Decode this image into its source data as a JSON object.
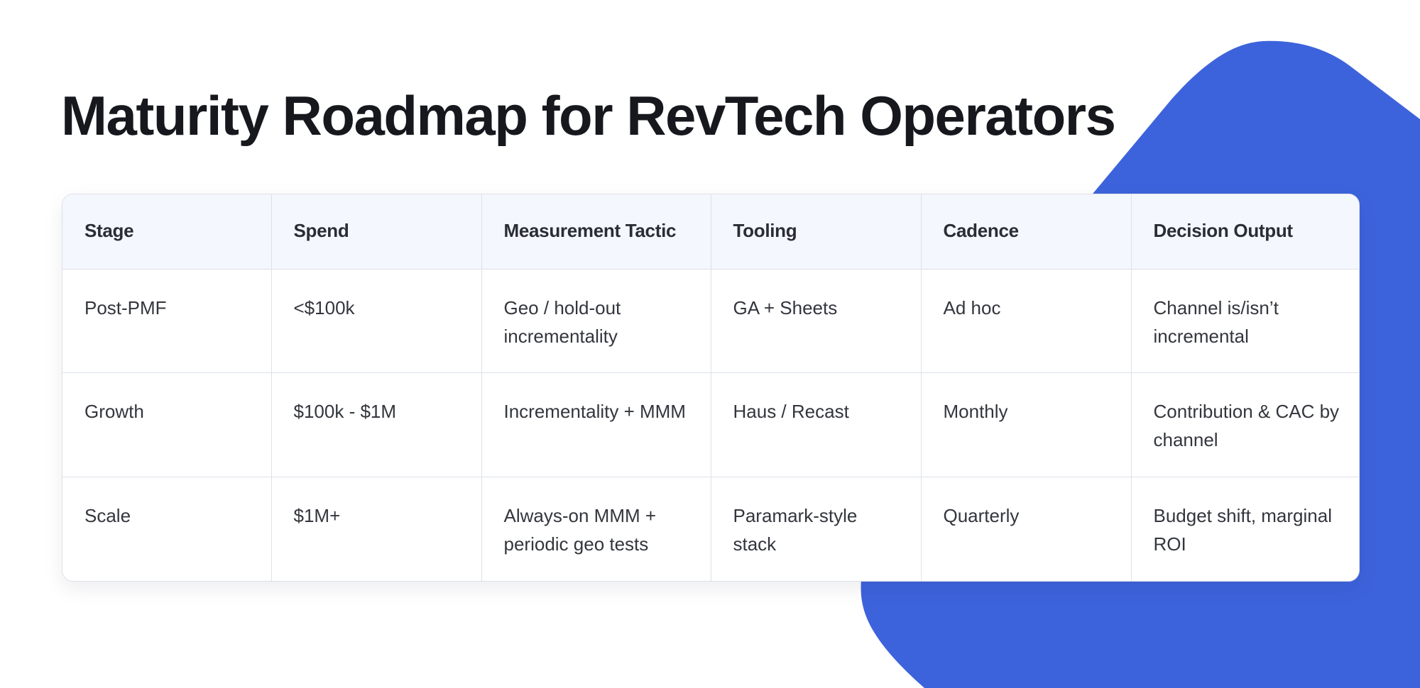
{
  "title": "Maturity Roadmap for RevTech Operators",
  "colors": {
    "accent": "#3d63dc",
    "header_bg": "#f4f7fd",
    "border": "#dde1e8",
    "title_text": "#16181d"
  },
  "table": {
    "headers": [
      "Stage",
      "Spend",
      "Measurement Tactic",
      "Tooling",
      "Cadence",
      "Decision Output"
    ],
    "rows": [
      [
        "Post-PMF",
        "<$100k",
        "Geo / hold-out incrementality",
        "GA + Sheets",
        "Ad hoc",
        "Channel is/isn’t incremental"
      ],
      [
        "Growth",
        "$100k - $1M",
        "Incrementality + MMM",
        "Haus / Recast",
        "Monthly",
        "Contribution & CAC by channel"
      ],
      [
        "Scale",
        "$1M+",
        "Always-on MMM + periodic geo tests",
        "Paramark-style stack",
        "Quarterly",
        "Budget shift, marginal ROI"
      ]
    ]
  }
}
